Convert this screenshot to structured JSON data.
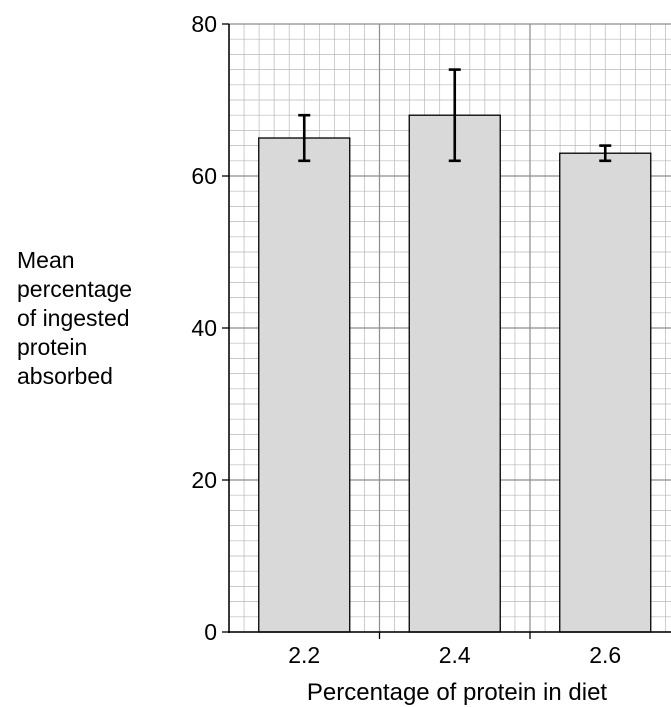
{
  "chart_data": {
    "type": "bar",
    "title": "",
    "xlabel": "Percentage of protein in diet",
    "ylabel_lines": [
      "Mean",
      "percentage",
      "of ingested",
      "protein",
      "absorbed"
    ],
    "categories": [
      "2.2",
      "2.4",
      "2.6"
    ],
    "values": [
      65,
      68,
      63
    ],
    "error_bars": [
      {
        "low": 62,
        "high": 68
      },
      {
        "low": 62,
        "high": 74
      },
      {
        "low": 62,
        "high": 64
      }
    ],
    "ylim": [
      0,
      80
    ],
    "yticks": [
      "0",
      "20",
      "40",
      "60",
      "80"
    ],
    "grid": true,
    "bar_color": "#d9d9d9",
    "grid_minor_color": "#b8b8b8",
    "grid_major_color": "#8c8c8c"
  }
}
